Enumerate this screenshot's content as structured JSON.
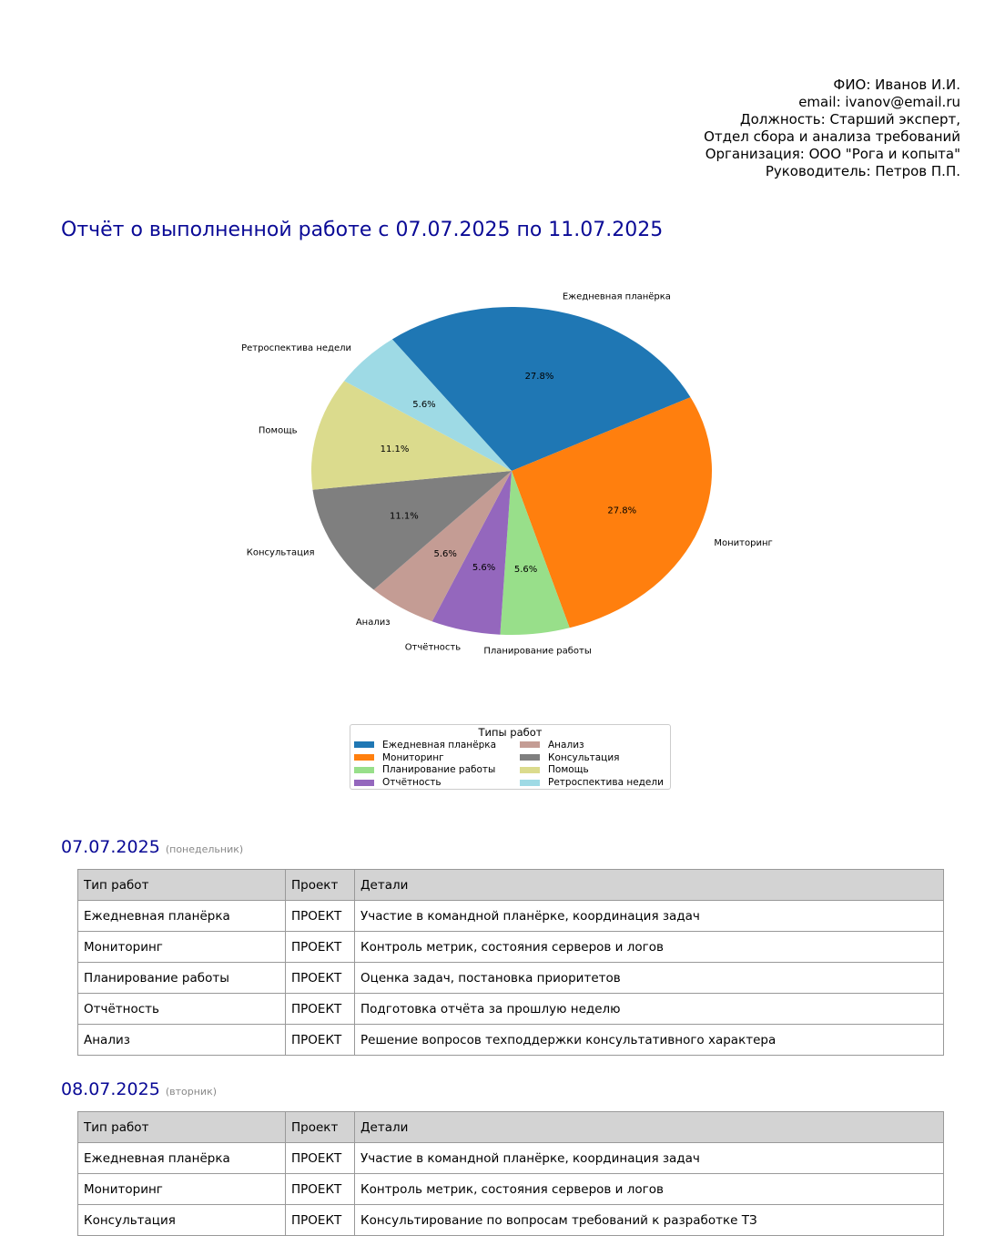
{
  "info": {
    "fio": "ФИО: Иванов И.И.",
    "email": "email: ivanov@email.ru",
    "position": "Должность: Старший эксперт,",
    "department": "Отдел сбора и анализа требований",
    "organization": "Организация: ООО \"Рога и копыта\"",
    "manager": "Руководитель: Петров П.П."
  },
  "title": "Отчёт о выполненной работе с 07.07.2025 по 11.07.2025",
  "chart_data": {
    "type": "pie",
    "slices": [
      {
        "label": "Ежедневная планёрка",
        "value": 27.8,
        "pct": "27.8%",
        "color": "#1f77b4"
      },
      {
        "label": "Мониторинг",
        "value": 27.8,
        "pct": "27.8%",
        "color": "#ff7f0e"
      },
      {
        "label": "Планирование работы",
        "value": 5.6,
        "pct": "5.6%",
        "color": "#98df8a"
      },
      {
        "label": "Отчётность",
        "value": 5.6,
        "pct": "5.6%",
        "color": "#9467bd"
      },
      {
        "label": "Анализ",
        "value": 5.6,
        "pct": "5.6%",
        "color": "#c49c94"
      },
      {
        "label": "Консультация",
        "value": 11.1,
        "pct": "11.1%",
        "color": "#7f7f7f"
      },
      {
        "label": "Помощь",
        "value": 11.1,
        "pct": "11.1%",
        "color": "#dbdb8d"
      },
      {
        "label": "Ретроспектива недели",
        "value": 5.6,
        "pct": "5.6%",
        "color": "#9edae5"
      }
    ],
    "legend": {
      "title": "Типы работ",
      "placement": "bottom-center",
      "items": [
        {
          "label": "Ежедневная планёрка",
          "color": "#1f77b4"
        },
        {
          "label": "Анализ",
          "color": "#c49c94"
        },
        {
          "label": "Мониторинг",
          "color": "#ff7f0e"
        },
        {
          "label": "Консультация",
          "color": "#7f7f7f"
        },
        {
          "label": "Планирование работы",
          "color": "#98df8a"
        },
        {
          "label": "Помощь",
          "color": "#dbdb8d"
        },
        {
          "label": "Отчётность",
          "color": "#9467bd"
        },
        {
          "label": "Ретроспектива недели",
          "color": "#9edae5"
        }
      ]
    }
  },
  "table_headers": [
    "Тип работ",
    "Проект",
    "Детали"
  ],
  "days": [
    {
      "date": "07.07.2025",
      "weekday": "(понедельник)",
      "rows": [
        [
          "Ежедневная планёрка",
          "ПРОЕКТ",
          "Участие в командной планёрке, координация задач"
        ],
        [
          "Мониторинг",
          "ПРОЕКТ",
          "Контроль метрик, состояния серверов и логов"
        ],
        [
          "Планирование работы",
          "ПРОЕКТ",
          "Оценка задач, постановка приоритетов"
        ],
        [
          "Отчётность",
          "ПРОЕКТ",
          "Подготовка отчёта за прошлую неделю"
        ],
        [
          "Анализ",
          "ПРОЕКТ",
          "Решение вопросов техподдержки консультативного характера"
        ]
      ]
    },
    {
      "date": "08.07.2025",
      "weekday": "(вторник)",
      "rows": [
        [
          "Ежедневная планёрка",
          "ПРОЕКТ",
          "Участие в командной планёрке, координация задач"
        ],
        [
          "Мониторинг",
          "ПРОЕКТ",
          "Контроль метрик, состояния серверов и логов"
        ],
        [
          "Консультация",
          "ПРОЕКТ",
          "Консультирование по вопросам требований к разработке ТЗ"
        ]
      ]
    }
  ]
}
